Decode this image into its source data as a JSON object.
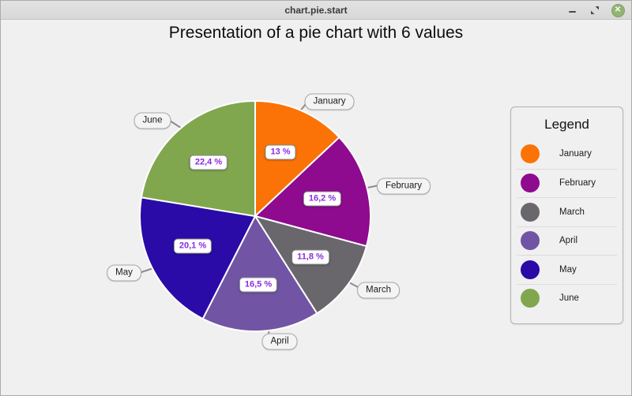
{
  "window": {
    "title": "chart.pie.start"
  },
  "chart_data": {
    "type": "pie",
    "title": "Presentation of a pie chart with 6 values",
    "categories": [
      "January",
      "February",
      "March",
      "April",
      "May",
      "June"
    ],
    "values": [
      13,
      16.2,
      11.8,
      16.5,
      20.1,
      22.4
    ],
    "value_labels": [
      "13 %",
      "16,2 %",
      "11,8 %",
      "16,5 %",
      "20,1 %",
      "22,4 %"
    ],
    "colors": [
      "#FB7306",
      "#8E0A8E",
      "#6A676C",
      "#7155A4",
      "#2A0BA8",
      "#81A74E"
    ],
    "slice_label_color": "#8A2BE2",
    "start_angle_deg": 0,
    "direction": "clockwise",
    "legend_position": "right"
  },
  "legend": {
    "title": "Legend",
    "items": [
      {
        "label": "January",
        "color": "#FB7306"
      },
      {
        "label": "February",
        "color": "#8E0A8E"
      },
      {
        "label": "March",
        "color": "#6A676C"
      },
      {
        "label": "April",
        "color": "#7155A4"
      },
      {
        "label": "May",
        "color": "#2A0BA8"
      },
      {
        "label": "June",
        "color": "#81A74E"
      }
    ]
  }
}
